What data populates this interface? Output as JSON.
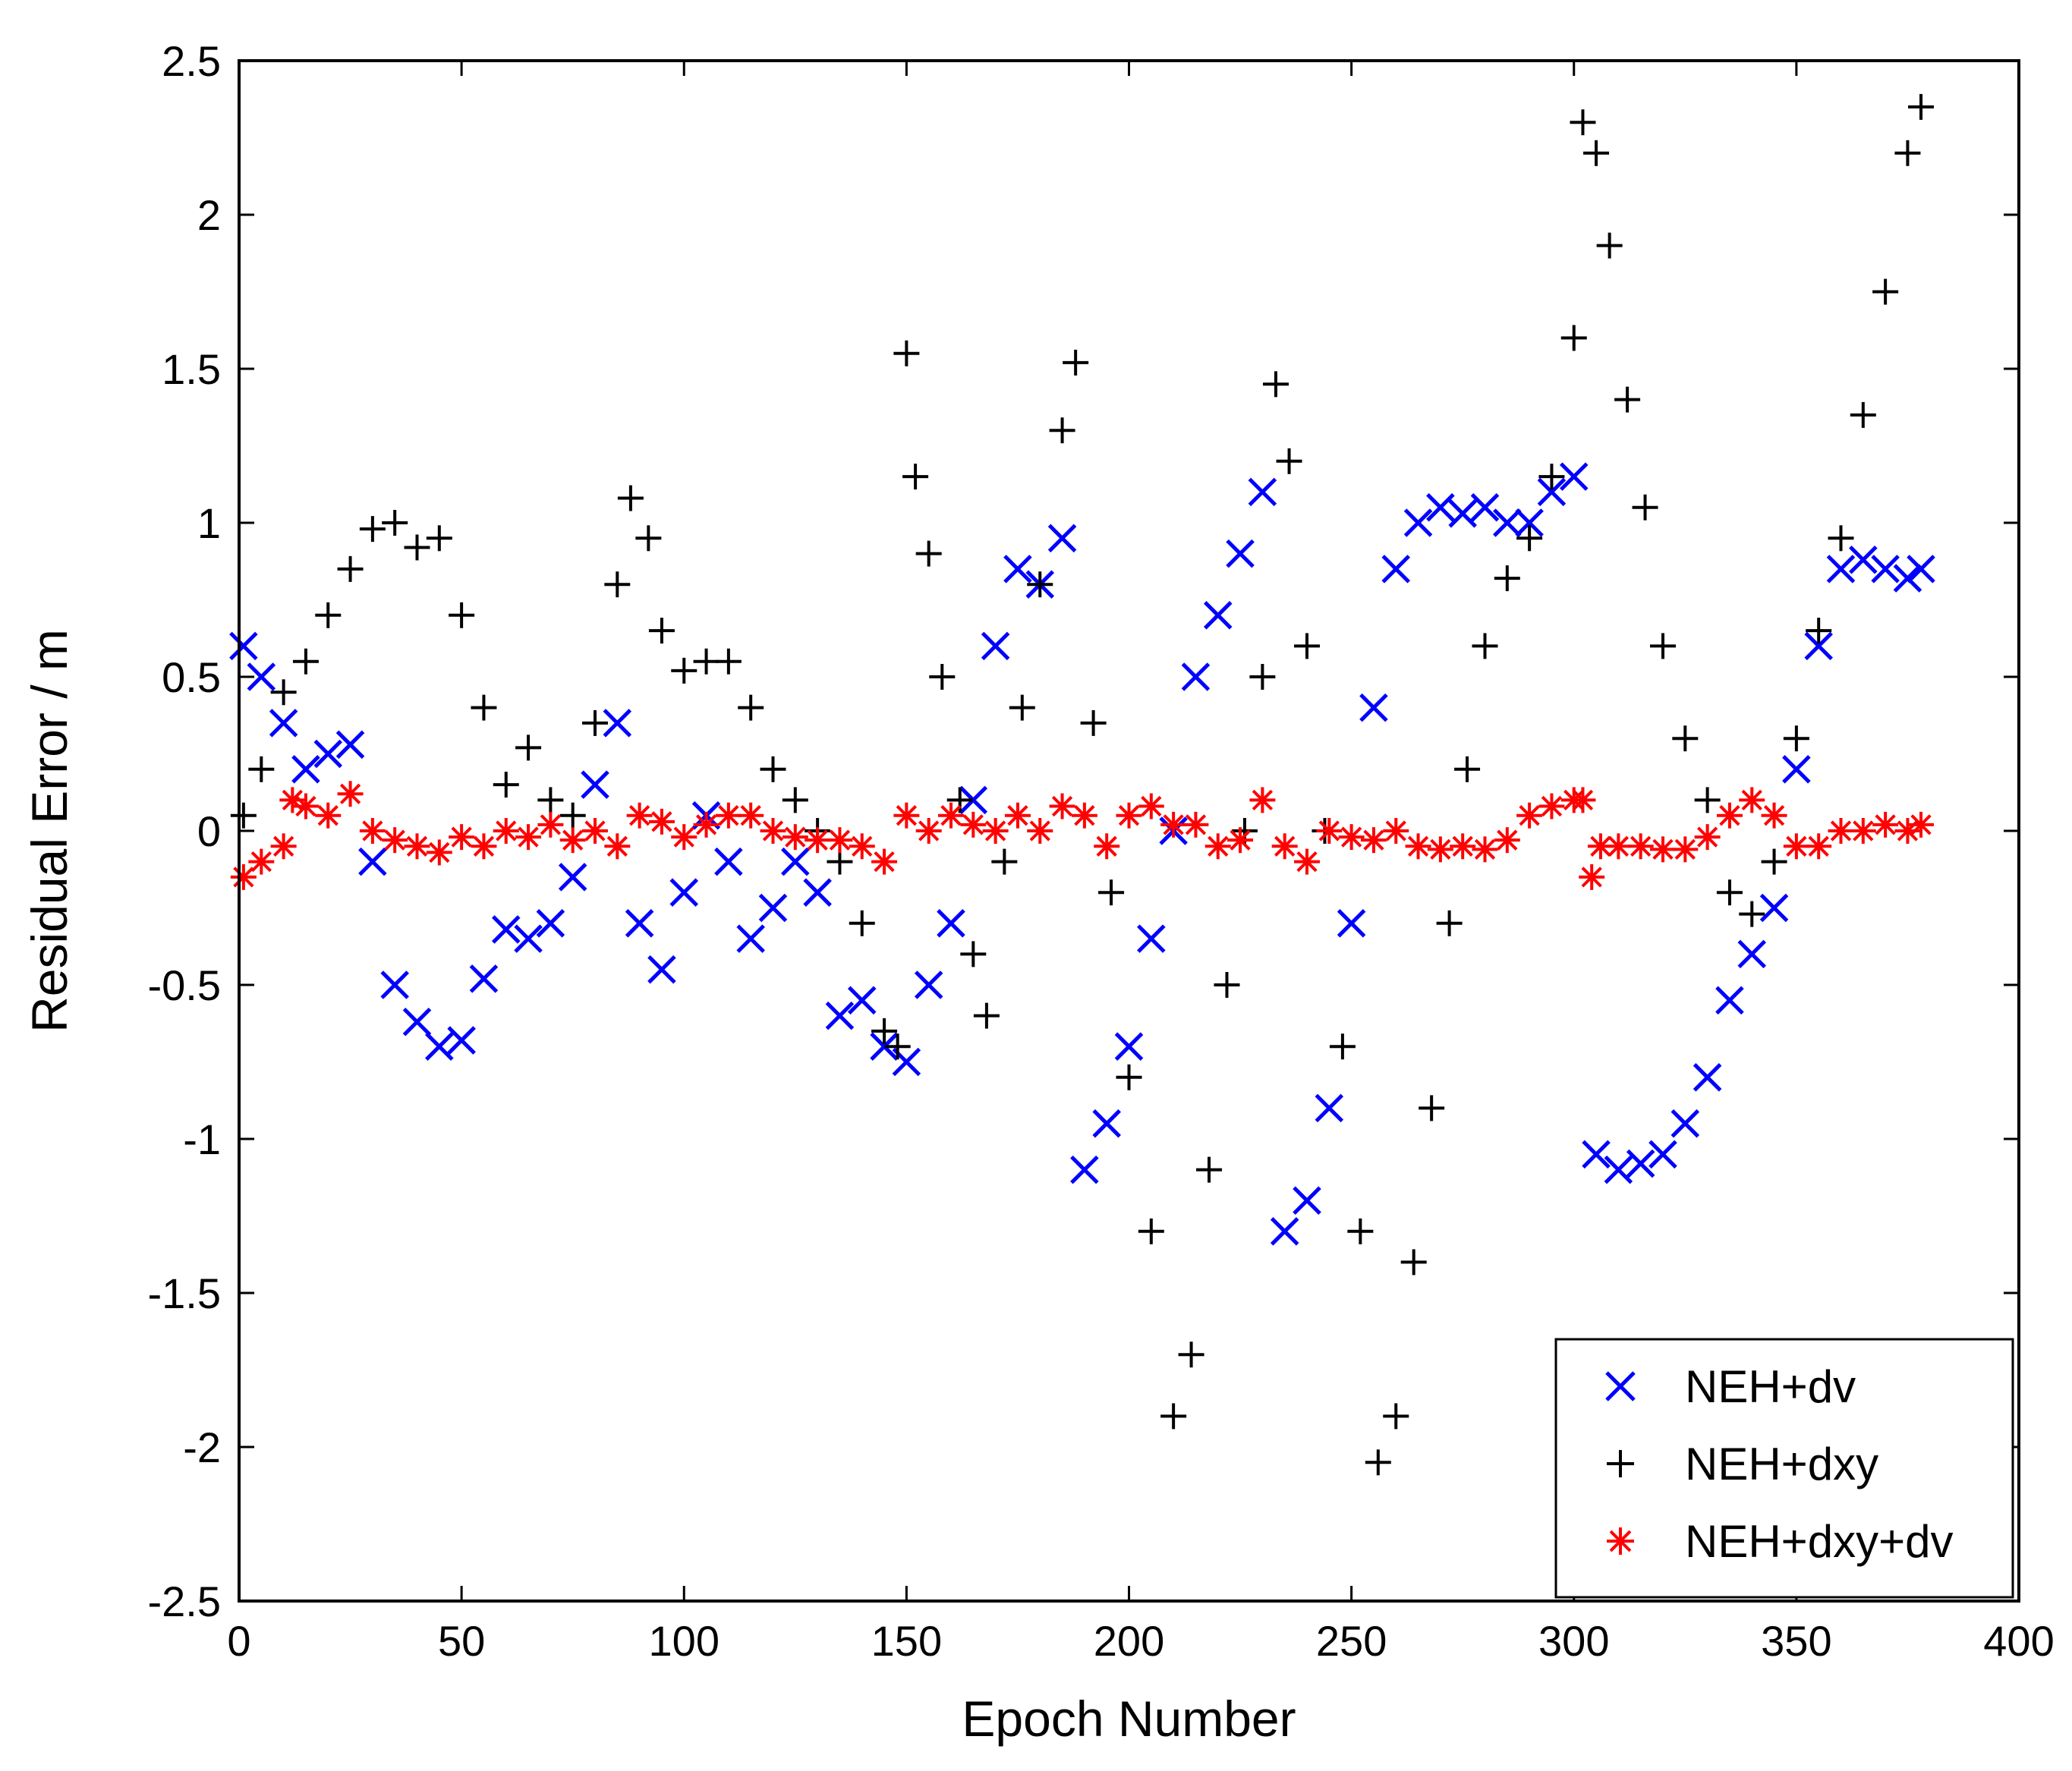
{
  "chart_data": {
    "type": "scatter",
    "title": "",
    "xlabel": "Epoch Number",
    "ylabel": "Residual Error / m",
    "xlim": [
      0,
      400
    ],
    "ylim": [
      -2.5,
      2.5
    ],
    "xticks": [
      0,
      50,
      100,
      150,
      200,
      250,
      300,
      350,
      400
    ],
    "yticks": [
      -2.5,
      -2,
      -1.5,
      -1,
      -0.5,
      0,
      0.5,
      1,
      1.5,
      2,
      2.5
    ],
    "xtick_labels": [
      "0",
      "50",
      "100",
      "150",
      "200",
      "250",
      "300",
      "350",
      "400"
    ],
    "ytick_labels": [
      "-2.5",
      "-2",
      "-1.5",
      "-1",
      "-0.5",
      "0",
      "0.5",
      "1",
      "1.5",
      "2",
      "2.5"
    ],
    "grid": false,
    "legend_position": "bottom-right",
    "series": [
      {
        "name": "NEH+dv",
        "marker": "x",
        "color": "#0000ff",
        "x": [
          1,
          5,
          10,
          15,
          20,
          25,
          30,
          35,
          40,
          45,
          50,
          55,
          60,
          65,
          70,
          75,
          80,
          85,
          90,
          95,
          100,
          105,
          110,
          115,
          120,
          125,
          130,
          135,
          140,
          145,
          150,
          155,
          160,
          165,
          170,
          175,
          180,
          185,
          190,
          195,
          200,
          205,
          210,
          215,
          220,
          225,
          230,
          235,
          240,
          245,
          250,
          255,
          260,
          265,
          270,
          275,
          280,
          285,
          290,
          295,
          300,
          305,
          310,
          315,
          320,
          325,
          330,
          335,
          340,
          345,
          350,
          355,
          360,
          365,
          370,
          375,
          378
        ],
        "y": [
          0.6,
          0.5,
          0.35,
          0.2,
          0.25,
          0.28,
          -0.1,
          -0.5,
          -0.62,
          -0.7,
          -0.68,
          -0.48,
          -0.32,
          -0.35,
          -0.3,
          -0.15,
          0.15,
          0.35,
          -0.3,
          -0.45,
          -0.2,
          0.05,
          -0.1,
          -0.35,
          -0.25,
          -0.1,
          -0.2,
          -0.6,
          -0.55,
          -0.7,
          -0.75,
          -0.5,
          -0.3,
          0.1,
          0.6,
          0.85,
          0.8,
          0.95,
          -1.1,
          -0.95,
          -0.7,
          -0.35,
          0.0,
          0.5,
          0.7,
          0.9,
          1.1,
          -1.3,
          -1.2,
          -0.9,
          -0.3,
          0.4,
          0.85,
          1.0,
          1.05,
          1.03,
          1.05,
          1.0,
          1.0,
          1.1,
          1.15,
          -1.05,
          -1.1,
          -1.08,
          -1.05,
          -0.95,
          -0.8,
          -0.55,
          -0.4,
          -0.25,
          0.2,
          0.6,
          0.85,
          0.88,
          0.85,
          0.82,
          0.85
        ]
      },
      {
        "name": "NEH+dxy",
        "marker": "+",
        "color": "#000000",
        "x": [
          1,
          5,
          10,
          15,
          20,
          25,
          30,
          35,
          40,
          45,
          50,
          55,
          60,
          65,
          70,
          75,
          80,
          85,
          88,
          92,
          95,
          100,
          105,
          110,
          115,
          120,
          125,
          130,
          135,
          140,
          145,
          148,
          150,
          152,
          155,
          158,
          162,
          165,
          168,
          172,
          176,
          180,
          185,
          188,
          192,
          196,
          200,
          205,
          210,
          214,
          218,
          222,
          226,
          230,
          233,
          236,
          240,
          244,
          248,
          252,
          256,
          260,
          264,
          268,
          272,
          276,
          280,
          285,
          290,
          295,
          300,
          302,
          305,
          308,
          312,
          316,
          320,
          325,
          330,
          335,
          340,
          345,
          350,
          355,
          360,
          365,
          370,
          375,
          378
        ],
        "y": [
          0.05,
          0.2,
          0.45,
          0.55,
          0.7,
          0.85,
          0.98,
          1.0,
          0.92,
          0.95,
          0.7,
          0.4,
          0.15,
          0.27,
          0.1,
          0.05,
          0.35,
          0.8,
          1.08,
          0.95,
          0.65,
          0.52,
          0.55,
          0.55,
          0.4,
          0.2,
          0.1,
          0.0,
          -0.1,
          -0.3,
          -0.65,
          -0.7,
          1.55,
          1.15,
          0.9,
          0.5,
          0.1,
          -0.4,
          -0.6,
          -0.1,
          0.4,
          0.8,
          1.3,
          1.52,
          0.35,
          -0.2,
          -0.8,
          -1.3,
          -1.9,
          -1.7,
          -1.1,
          -0.5,
          0.0,
          0.5,
          1.45,
          1.2,
          0.6,
          0.0,
          -0.7,
          -1.3,
          -2.05,
          -1.9,
          -1.4,
          -0.9,
          -0.3,
          0.2,
          0.6,
          0.82,
          0.95,
          1.15,
          1.6,
          2.3,
          2.2,
          1.9,
          1.4,
          1.05,
          0.6,
          0.3,
          0.1,
          -0.2,
          -0.27,
          -0.1,
          0.3,
          0.65,
          0.95,
          1.35,
          1.75,
          2.2,
          2.35
        ]
      },
      {
        "name": "NEH+dxy+dv",
        "marker": "*",
        "color": "#ff0000",
        "x": [
          1,
          5,
          10,
          12,
          15,
          20,
          25,
          30,
          35,
          40,
          45,
          50,
          55,
          60,
          65,
          70,
          75,
          80,
          85,
          90,
          95,
          100,
          105,
          110,
          115,
          120,
          125,
          130,
          135,
          140,
          145,
          150,
          155,
          160,
          165,
          170,
          175,
          180,
          185,
          190,
          195,
          200,
          205,
          210,
          215,
          220,
          225,
          230,
          235,
          240,
          245,
          250,
          255,
          260,
          265,
          270,
          275,
          280,
          285,
          290,
          295,
          300,
          302,
          304,
          306,
          310,
          315,
          320,
          325,
          330,
          335,
          340,
          345,
          350,
          355,
          360,
          365,
          370,
          375,
          378
        ],
        "y": [
          -0.15,
          -0.1,
          -0.05,
          0.1,
          0.08,
          0.05,
          0.12,
          0.0,
          -0.03,
          -0.05,
          -0.07,
          -0.02,
          -0.05,
          0.0,
          -0.02,
          0.02,
          -0.03,
          0.0,
          -0.05,
          0.05,
          0.03,
          -0.02,
          0.02,
          0.05,
          0.05,
          0.0,
          -0.02,
          -0.03,
          -0.03,
          -0.05,
          -0.1,
          0.05,
          0.0,
          0.05,
          0.02,
          0.0,
          0.05,
          0.0,
          0.08,
          0.05,
          -0.05,
          0.05,
          0.08,
          0.02,
          0.02,
          -0.05,
          -0.03,
          0.1,
          -0.05,
          -0.1,
          0.0,
          -0.02,
          -0.03,
          0.0,
          -0.05,
          -0.06,
          -0.05,
          -0.06,
          -0.03,
          0.05,
          0.08,
          0.1,
          0.1,
          -0.15,
          -0.05,
          -0.05,
          -0.05,
          -0.06,
          -0.06,
          -0.02,
          0.05,
          0.1,
          0.05,
          -0.05,
          -0.05,
          0.0,
          0.0,
          0.02,
          0.0,
          0.02
        ]
      }
    ]
  }
}
